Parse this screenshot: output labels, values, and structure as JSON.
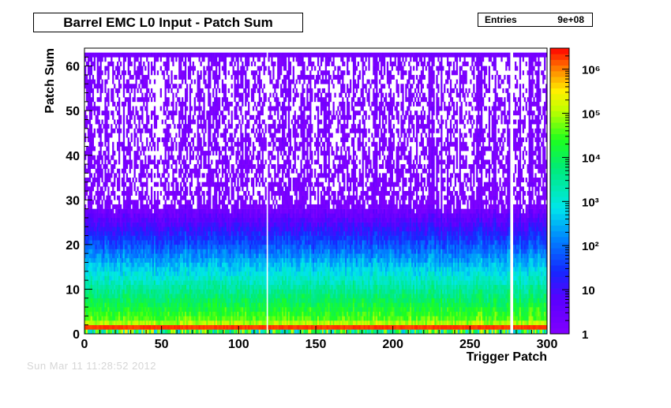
{
  "chart_data": {
    "type": "heatmap",
    "title": "Barrel EMC L0 Input - Patch Sum",
    "xlabel": "Trigger Patch",
    "ylabel": "Patch Sum",
    "xlim": [
      0,
      300
    ],
    "ylim": [
      0,
      64
    ],
    "x_ticks": [
      "0",
      "50",
      "100",
      "150",
      "200",
      "250",
      "300"
    ],
    "y_ticks": [
      "0",
      "10",
      "20",
      "30",
      "40",
      "50",
      "60"
    ],
    "z_scale": "log",
    "zlim": [
      1,
      3000000
    ],
    "z_ticks": [
      "1",
      "10",
      "10²",
      "10³",
      "10⁴",
      "10⁵",
      "10⁶"
    ],
    "stats": {
      "label": "Entries",
      "value": "9e+08"
    },
    "dead_patches": [
      118,
      276,
      277
    ]
  },
  "footer": "Sun Mar 11 11:28:52 2012"
}
